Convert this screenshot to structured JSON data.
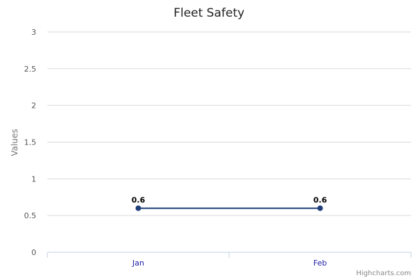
{
  "chart_data": {
    "type": "line",
    "title": "Fleet Safety",
    "ylabel": "Values",
    "xlabel": "",
    "categories": [
      "Jan",
      "Feb"
    ],
    "series": [
      {
        "values": [
          0.6,
          0.6
        ],
        "color": "#1f3f7a",
        "data_labels": [
          "0.6",
          "0.6"
        ]
      }
    ],
    "ylim": [
      0,
      3
    ],
    "yticks": [
      0,
      0.5,
      1,
      1.5,
      2,
      2.5,
      3
    ],
    "ytick_labels": [
      "0",
      "0.5",
      "1",
      "1.5",
      "2",
      "2.5",
      "3"
    ],
    "grid": true,
    "legend": "none"
  },
  "credits": "Highcharts.com",
  "colors": {
    "grid": "#d9d9d9",
    "axis": "#c0d0e0",
    "xtick_text": "#1a1aa6"
  }
}
